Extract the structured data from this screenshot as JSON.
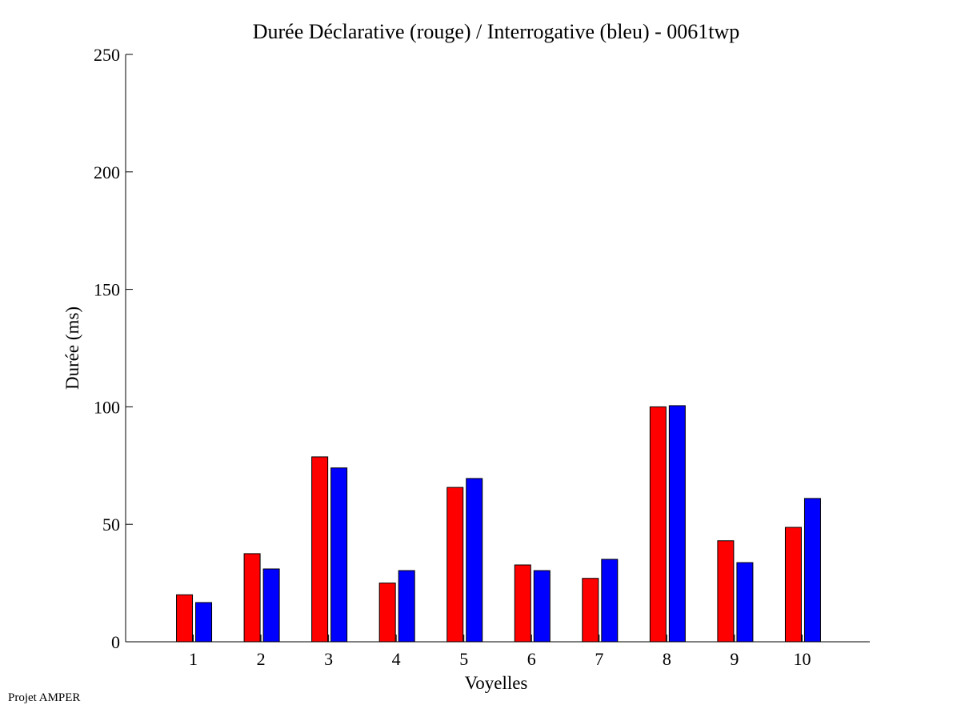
{
  "chart_data": {
    "type": "bar",
    "title": "Durée Déclarative (rouge) / Interrogative (bleu) - 0061twp",
    "xlabel": "Voyelles",
    "ylabel": "Durée (ms)",
    "categories": [
      "1",
      "2",
      "3",
      "4",
      "5",
      "6",
      "7",
      "8",
      "9",
      "10"
    ],
    "series": [
      {
        "name": "Déclarative",
        "color": "#ff0000",
        "values": [
          20,
          37.5,
          78.7,
          25,
          65.7,
          32.7,
          27,
          100,
          43,
          48.7
        ]
      },
      {
        "name": "Interrogative",
        "color": "#0000ff",
        "values": [
          16.7,
          31,
          74,
          30.3,
          69.5,
          30.3,
          35.1,
          100.5,
          33.7,
          61
        ]
      }
    ],
    "ylim": [
      0,
      250
    ],
    "xlim": [
      0,
      11
    ],
    "yticks": [
      "0",
      "50",
      "100",
      "150",
      "200",
      "250"
    ],
    "grid": false,
    "legend": "none"
  },
  "footer": "Projet AMPER"
}
